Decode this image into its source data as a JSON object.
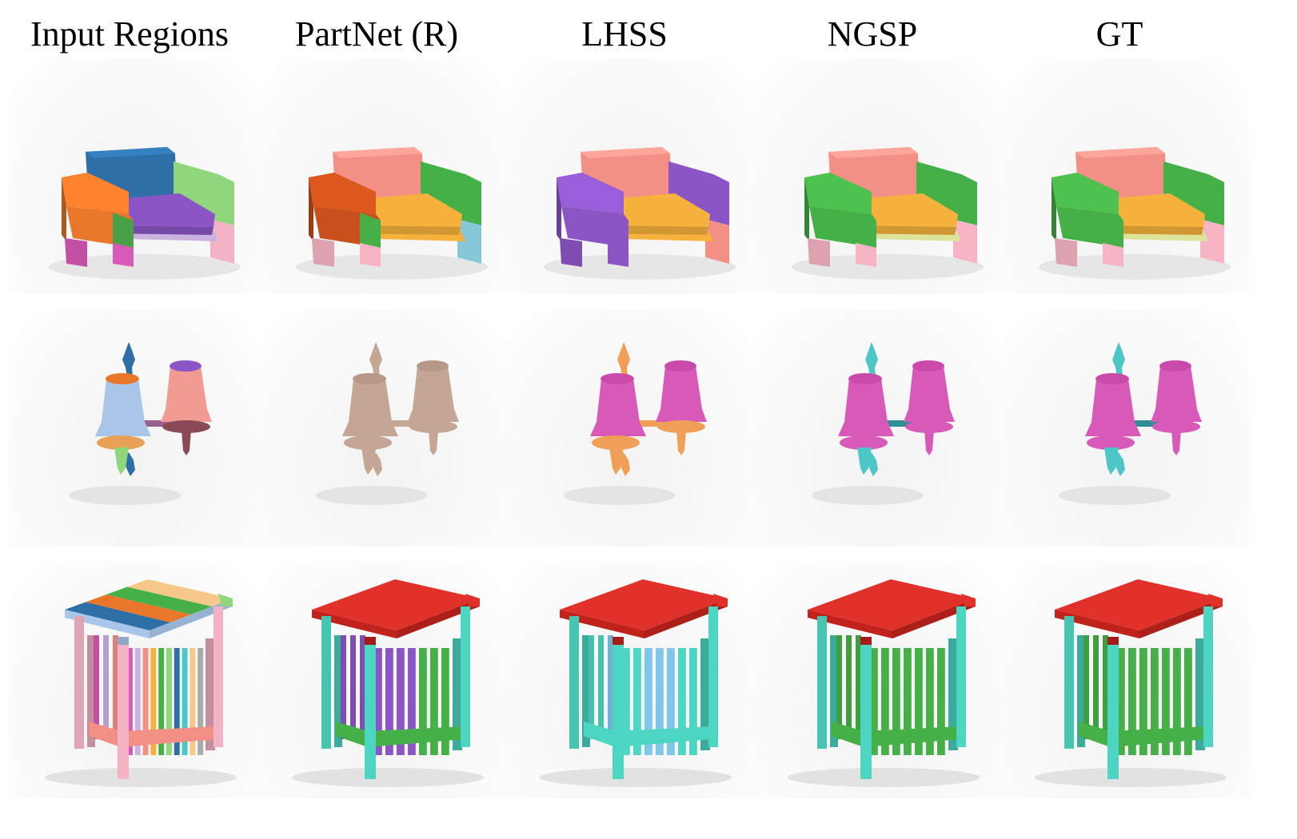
{
  "figure": {
    "columns": [
      {
        "label": "Input Regions"
      },
      {
        "label": "PartNet (R)"
      },
      {
        "label": "LHSS"
      },
      {
        "label": "NGSP"
      },
      {
        "label": "GT"
      }
    ],
    "rows": [
      {
        "object": "chair",
        "cells": [
          {
            "back": "#2e6fa8",
            "seat": "#8b55c6",
            "armL": "#e8772a",
            "armR": "#8fd67c",
            "legL": "#d85ab8",
            "legR": "#f4b3c4",
            "base": "#c9b2e0",
            "legL2": "#49a047"
          },
          {
            "back": "#f29086",
            "seat": "#f6b23c",
            "armL": "#c9501c",
            "armR": "#46b048",
            "legL": "#f6b4c4",
            "legR": "#86c8d8",
            "base": "#f6b23c",
            "legL2": "#46b048"
          },
          {
            "back": "#f29086",
            "seat": "#f6b23c",
            "armL": "#8b55c6",
            "armR": "#8b55c6",
            "legL": "#8b55c6",
            "legR": "#f29086",
            "base": "#f6b23c",
            "legL2": "#8b55c6"
          },
          {
            "back": "#f29086",
            "seat": "#f6b23c",
            "armL": "#46b048",
            "armR": "#46b048",
            "legL": "#f6b4c4",
            "legR": "#f6b4c4",
            "base": "#dde49a",
            "legL2": "#46b048"
          },
          {
            "back": "#f29086",
            "seat": "#f6b23c",
            "armL": "#46b048",
            "armR": "#46b048",
            "legL": "#f6b4c4",
            "legR": "#f6b4c4",
            "base": "#dde49a",
            "legL2": "#46b048"
          }
        ]
      },
      {
        "object": "lamp",
        "cells": [
          {
            "shadeL": "#a9c6e8",
            "shadeR": "#f29b93",
            "topL": "#e8772a",
            "topR": "#8b55c6",
            "cupL": "#e8a056",
            "cupR": "#8a4a55",
            "finial": "#2e6fa8",
            "arm": "#9a6090",
            "stem": "#46b048",
            "drop": "#8fd67c"
          },
          {
            "shadeL": "#c4a694",
            "shadeR": "#c4a694",
            "topL": "#b69888",
            "topR": "#b69888",
            "cupL": "#c4a694",
            "cupR": "#c4a694",
            "finial": "#c4a694",
            "arm": "#c4a694",
            "stem": "#c4a694",
            "drop": "#c4a694"
          },
          {
            "shadeL": "#d85ab8",
            "shadeR": "#d85ab8",
            "topL": "#c94aa8",
            "topR": "#c94aa8",
            "cupL": "#f0a056",
            "cupR": "#f0a056",
            "finial": "#f0a056",
            "arm": "#f0a056",
            "stem": "#f0a056",
            "drop": "#f0a056"
          },
          {
            "shadeL": "#d85ab8",
            "shadeR": "#d85ab8",
            "topL": "#c94aa8",
            "topR": "#c94aa8",
            "cupL": "#d85ab8",
            "cupR": "#d85ab8",
            "finial": "#4cc6c6",
            "arm": "#2f8f95",
            "stem": "#4cc6c6",
            "drop": "#4cc6c6"
          },
          {
            "shadeL": "#d85ab8",
            "shadeR": "#d85ab8",
            "topL": "#c94aa8",
            "topR": "#c94aa8",
            "cupL": "#d85ab8",
            "cupR": "#d85ab8",
            "finial": "#4cc6c6",
            "arm": "#2f8f95",
            "stem": "#d85ab8",
            "drop": "#4cc6c6"
          }
        ]
      },
      {
        "object": "table",
        "cells": [
          {
            "top": [
              "#f6c88a",
              "#46b048",
              "#e8772a",
              "#2e6fa8"
            ],
            "edge": "#a9c6e8",
            "corner": "#8fd67c",
            "legs": "#f4b3c4",
            "slats": [
              "#d85ab8",
              "#c9b2e0",
              "#f29086",
              "#f6b23c",
              "#46b048",
              "#8fd67c",
              "#2e6fa8",
              "#4cc6c6",
              "#f6c88a",
              "#aaaaaa"
            ],
            "apron": "#f29086"
          },
          {
            "top": [
              "#e0322a"
            ],
            "edge": "#c0221c",
            "corner": "#e0322a",
            "legs": "#4cd6c2",
            "slats": [
              "#8b55c6",
              "#8b55c6",
              "#8b55c6",
              "#8b55c6",
              "#46b048",
              "#46b048",
              "#46b048"
            ],
            "apron": "#46b048"
          },
          {
            "top": [
              "#e0322a"
            ],
            "edge": "#c0221c",
            "corner": "#e0322a",
            "legs": "#4cd6c2",
            "slats": [
              "#4cd6c2",
              "#4cd6c2",
              "#7fc6e8",
              "#7fc6e8",
              "#7fc6e8",
              "#4cd6c2",
              "#4cd6c2"
            ],
            "apron": "#4cd6c2"
          },
          {
            "top": [
              "#e0322a"
            ],
            "edge": "#c0221c",
            "corner": "#e0322a",
            "legs": "#4cd6c2",
            "slats": [
              "#46b048",
              "#46b048",
              "#46b048",
              "#46b048",
              "#46b048",
              "#46b048",
              "#46b048"
            ],
            "apron": "#46b048"
          },
          {
            "top": [
              "#e0322a"
            ],
            "edge": "#c0221c",
            "corner": "#e0322a",
            "legs": "#4cd6c2",
            "slats": [
              "#46b048",
              "#46b048",
              "#46b048",
              "#46b048",
              "#46b048",
              "#46b048",
              "#46b048"
            ],
            "apron": "#46b048"
          }
        ]
      }
    ]
  }
}
